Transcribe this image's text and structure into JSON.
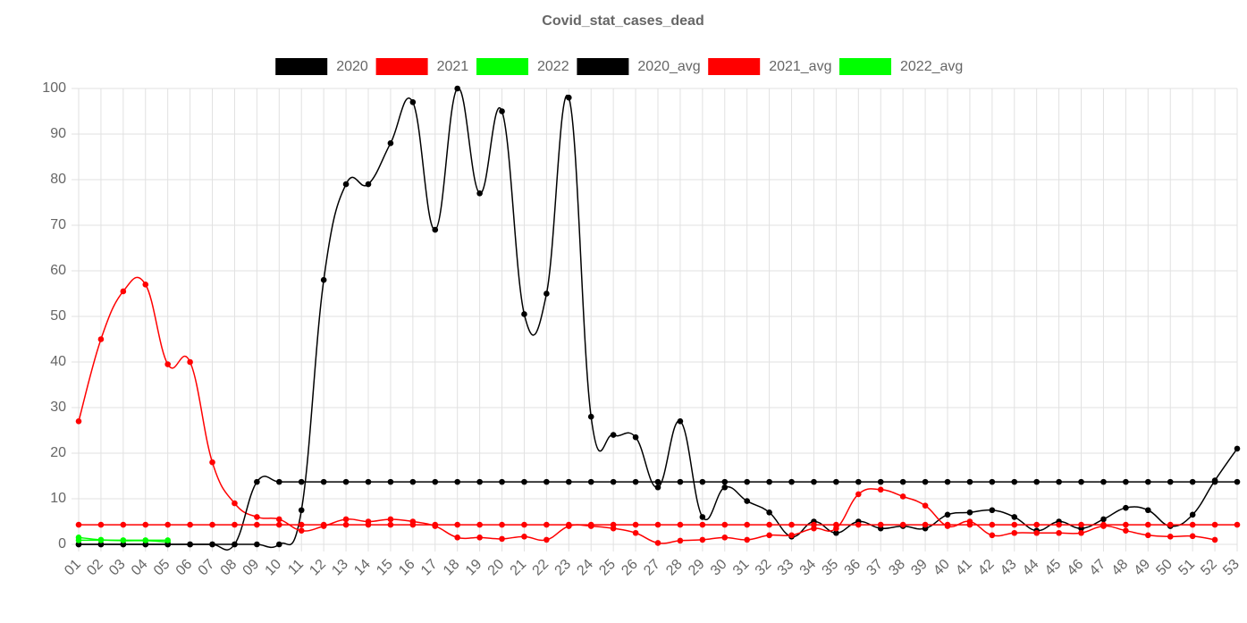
{
  "chart_data": {
    "type": "line",
    "title": "Covid_stat_cases_dead",
    "categories": [
      "01",
      "02",
      "03",
      "04",
      "05",
      "06",
      "07",
      "08",
      "09",
      "10",
      "11",
      "12",
      "13",
      "14",
      "15",
      "16",
      "17",
      "18",
      "19",
      "20",
      "21",
      "22",
      "23",
      "24",
      "25",
      "26",
      "27",
      "28",
      "29",
      "30",
      "31",
      "32",
      "33",
      "34",
      "35",
      "36",
      "37",
      "38",
      "39",
      "40",
      "41",
      "42",
      "43",
      "44",
      "45",
      "46",
      "47",
      "48",
      "49",
      "50",
      "51",
      "52",
      "53"
    ],
    "ylim": [
      0,
      100
    ],
    "yticks": [
      0,
      10,
      20,
      30,
      40,
      50,
      60,
      70,
      80,
      90,
      100
    ],
    "grid": true,
    "legend": "top",
    "series": [
      {
        "name": "2020",
        "color": "#000000",
        "values": [
          0,
          0,
          0,
          0,
          0,
          0,
          0,
          0,
          0,
          0,
          7.5,
          58,
          79,
          79,
          88,
          97,
          69,
          100,
          77,
          95,
          50.5,
          55,
          98,
          28,
          24,
          23.5,
          12.5,
          27,
          6,
          12.5,
          9.5,
          7,
          1.7,
          5,
          2.5,
          5,
          3.5,
          4,
          3.5,
          6.5,
          7,
          7.5,
          6,
          3,
          5,
          3.5,
          5.5,
          8,
          7.5,
          4,
          6.5,
          14,
          21
        ]
      },
      {
        "name": "2021",
        "color": "#ff0000",
        "values": [
          27,
          45,
          55.5,
          57,
          39.5,
          40,
          18,
          9,
          6,
          5.5,
          3,
          4,
          5.5,
          5,
          5.5,
          5,
          4,
          1.5,
          1.5,
          1.2,
          1.7,
          1,
          4,
          4,
          3.5,
          2.5,
          0.3,
          0.8,
          1,
          1.5,
          1,
          2,
          2,
          3.5,
          3.5,
          11,
          12,
          10.5,
          8.5,
          4,
          5,
          2,
          2.5,
          2.5,
          2.5,
          2.5,
          4,
          3,
          2,
          1.7,
          1.8,
          1,
          null
        ]
      },
      {
        "name": "2022",
        "color": "#00ff00",
        "values": [
          1.5,
          1,
          0.8,
          0.8,
          0.5,
          null,
          null,
          null,
          null,
          null,
          null,
          null,
          null,
          null,
          null,
          null,
          null,
          null,
          null,
          null,
          null,
          null,
          null,
          null,
          null,
          null,
          null,
          null,
          null,
          null,
          null,
          null,
          null,
          null,
          null,
          null,
          null,
          null,
          null,
          null,
          null,
          null,
          null,
          null,
          null,
          null,
          null,
          null,
          null,
          null,
          null,
          null,
          null
        ]
      },
      {
        "name": "2020_avg",
        "color": "#000000",
        "values": [
          0,
          0,
          0,
          0,
          0,
          0,
          0,
          0,
          13.7,
          13.7,
          13.7,
          13.7,
          13.7,
          13.7,
          13.7,
          13.7,
          13.7,
          13.7,
          13.7,
          13.7,
          13.7,
          13.7,
          13.7,
          13.7,
          13.7,
          13.7,
          13.7,
          13.7,
          13.7,
          13.7,
          13.7,
          13.7,
          13.7,
          13.7,
          13.7,
          13.7,
          13.7,
          13.7,
          13.7,
          13.7,
          13.7,
          13.7,
          13.7,
          13.7,
          13.7,
          13.7,
          13.7,
          13.7,
          13.7,
          13.7,
          13.7,
          13.7,
          13.7
        ]
      },
      {
        "name": "2021_avg",
        "color": "#ff0000",
        "values": [
          4.3,
          4.3,
          4.3,
          4.3,
          4.3,
          4.3,
          4.3,
          4.3,
          4.3,
          4.3,
          4.3,
          4.3,
          4.3,
          4.3,
          4.3,
          4.3,
          4.3,
          4.3,
          4.3,
          4.3,
          4.3,
          4.3,
          4.3,
          4.3,
          4.3,
          4.3,
          4.3,
          4.3,
          4.3,
          4.3,
          4.3,
          4.3,
          4.3,
          4.3,
          4.3,
          4.3,
          4.3,
          4.3,
          4.3,
          4.3,
          4.3,
          4.3,
          4.3,
          4.3,
          4.3,
          4.3,
          4.3,
          4.3,
          4.3,
          4.3,
          4.3,
          4.3,
          4.3
        ]
      },
      {
        "name": "2022_avg",
        "color": "#00ff00",
        "values": [
          0.9,
          0.9,
          0.9,
          0.9,
          0.9,
          null,
          null,
          null,
          null,
          null,
          null,
          null,
          null,
          null,
          null,
          null,
          null,
          null,
          null,
          null,
          null,
          null,
          null,
          null,
          null,
          null,
          null,
          null,
          null,
          null,
          null,
          null,
          null,
          null,
          null,
          null,
          null,
          null,
          null,
          null,
          null,
          null,
          null,
          null,
          null,
          null,
          null,
          null,
          null,
          null,
          null,
          null,
          null
        ]
      }
    ]
  }
}
